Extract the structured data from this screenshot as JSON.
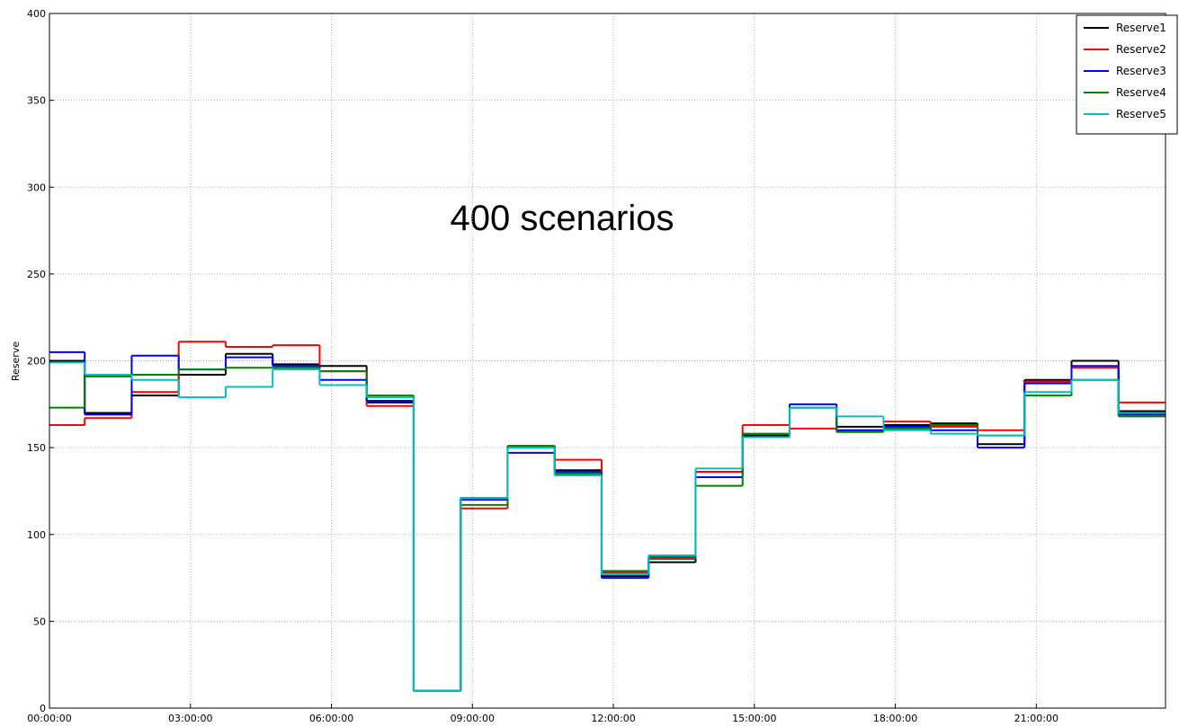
{
  "chart_data": {
    "type": "step",
    "annotation": "400 scenarios",
    "y_label": "Reserve",
    "x": [
      "00:00:00",
      "00:45:00",
      "01:45:00",
      "02:45:00",
      "03:45:00",
      "04:45:00",
      "05:45:00",
      "06:45:00",
      "07:45:00",
      "08:45:00",
      "09:45:00",
      "10:45:00",
      "11:45:00",
      "12:45:00",
      "13:45:00",
      "14:45:00",
      "15:45:00",
      "16:45:00",
      "17:45:00",
      "18:45:00",
      "19:45:00",
      "20:45:00",
      "21:45:00",
      "22:45:00"
    ],
    "xlim": [
      "00:00:00",
      "23:45:00"
    ],
    "xticks": [
      "00:00:00",
      "03:00:00",
      "06:00:00",
      "09:00:00",
      "12:00:00",
      "15:00:00",
      "18:00:00",
      "21:00:00"
    ],
    "ylim": [
      0,
      400
    ],
    "yticks": [
      0,
      50,
      100,
      150,
      200,
      250,
      300,
      350,
      400
    ],
    "grid": true,
    "legend": "upper right",
    "series": [
      {
        "name": "Reserve1",
        "color": "#000000",
        "values": [
          200,
          170,
          180,
          192,
          204,
          198,
          197,
          176,
          10,
          121,
          151,
          137,
          76,
          84,
          136,
          157,
          173,
          162,
          163,
          164,
          152,
          189,
          200,
          171
        ]
      },
      {
        "name": "Reserve2",
        "color": "#ff0000",
        "values": [
          163,
          167,
          182,
          211,
          208,
          209,
          194,
          174,
          10,
          115,
          150,
          143,
          78,
          87,
          136,
          163,
          161,
          160,
          165,
          162,
          160,
          188,
          196,
          176
        ]
      },
      {
        "name": "Reserve3",
        "color": "#0000ff",
        "values": [
          205,
          169,
          203,
          195,
          202,
          197,
          189,
          177,
          10,
          120,
          147,
          136,
          75,
          86,
          133,
          156,
          175,
          160,
          162,
          160,
          150,
          187,
          197,
          169
        ]
      },
      {
        "name": "Reserve4",
        "color": "#008000",
        "values": [
          173,
          191,
          192,
          195,
          196,
          196,
          194,
          180,
          10,
          117,
          151,
          135,
          79,
          86,
          128,
          158,
          173,
          159,
          161,
          163,
          157,
          180,
          189,
          168
        ]
      },
      {
        "name": "Reserve5",
        "color": "#00bfbf",
        "values": [
          199,
          192,
          189,
          179,
          185,
          195,
          186,
          179,
          10,
          121,
          150,
          134,
          77,
          88,
          138,
          156,
          173,
          168,
          160,
          158,
          157,
          182,
          189,
          170
        ]
      }
    ]
  }
}
